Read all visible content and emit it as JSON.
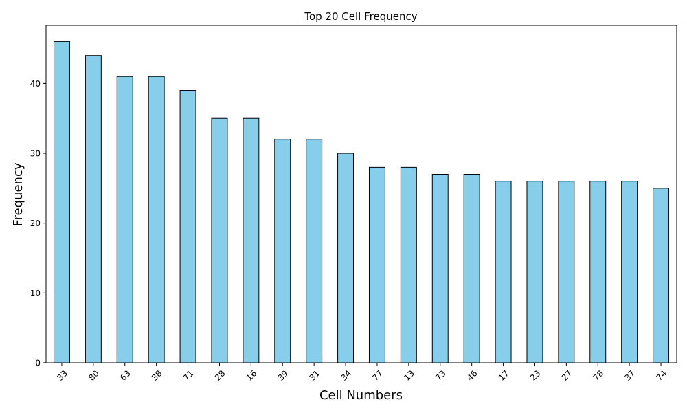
{
  "chart_data": {
    "type": "bar",
    "title": "Top 20 Cell Frequency",
    "xlabel": "Cell Numbers",
    "ylabel": "Frequency",
    "categories": [
      "33",
      "80",
      "63",
      "38",
      "71",
      "28",
      "16",
      "39",
      "31",
      "34",
      "77",
      "13",
      "73",
      "46",
      "17",
      "23",
      "27",
      "78",
      "37",
      "74"
    ],
    "values": [
      46,
      44,
      41,
      41,
      39,
      35,
      35,
      32,
      32,
      30,
      28,
      28,
      27,
      27,
      26,
      26,
      26,
      26,
      26,
      25
    ],
    "ylim": [
      0,
      48.3
    ],
    "yticks": [
      0,
      10,
      20,
      30,
      40
    ],
    "grid": false,
    "bar_color": "#87ceeb",
    "edge_color": "#000000"
  }
}
